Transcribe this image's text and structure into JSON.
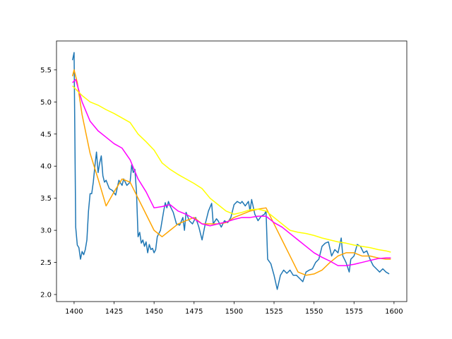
{
  "chart_data": {
    "type": "line",
    "xlim": [
      1389,
      1608
    ],
    "ylim": [
      1.89,
      5.95
    ],
    "xticks": [
      1400,
      1425,
      1450,
      1475,
      1500,
      1525,
      1550,
      1575,
      1600
    ],
    "yticks": [
      {
        "value": 2.0,
        "label": "2.0"
      },
      {
        "value": 2.5,
        "label": "2.5"
      },
      {
        "value": 3.0,
        "label": "3.0"
      },
      {
        "value": 3.5,
        "label": "3.5"
      },
      {
        "value": 4.0,
        "label": "4.0"
      },
      {
        "value": 4.5,
        "label": "4.5"
      },
      {
        "value": 5.0,
        "label": "5.0"
      },
      {
        "value": 5.5,
        "label": "5.5"
      }
    ],
    "series": [
      {
        "color": "#1f77b4",
        "x": [
          1399,
          1400,
          1401,
          1402,
          1403,
          1404,
          1405,
          1406,
          1407,
          1408,
          1409,
          1410,
          1411,
          1412,
          1413,
          1414,
          1415,
          1416,
          1417,
          1418,
          1419,
          1420,
          1422,
          1424,
          1426,
          1428,
          1430,
          1431,
          1433,
          1435,
          1436,
          1437,
          1438,
          1439,
          1440,
          1441,
          1442,
          1443,
          1444,
          1445,
          1446,
          1447,
          1448,
          1449,
          1450,
          1451,
          1452,
          1454,
          1456,
          1457,
          1458,
          1459,
          1460,
          1462,
          1464,
          1466,
          1468,
          1469,
          1470,
          1472,
          1474,
          1476,
          1478,
          1480,
          1482,
          1484,
          1486,
          1487,
          1489,
          1490,
          1492,
          1494,
          1496,
          1498,
          1500,
          1502,
          1504,
          1505,
          1507,
          1509,
          1510,
          1511,
          1513,
          1515,
          1517,
          1519,
          1520,
          1521,
          1523,
          1525,
          1527,
          1529,
          1531,
          1533,
          1535,
          1537,
          1539,
          1541,
          1543,
          1545,
          1547,
          1549,
          1551,
          1553,
          1555,
          1557,
          1559,
          1561,
          1563,
          1565,
          1567,
          1568,
          1570,
          1572,
          1573,
          1575,
          1577,
          1579,
          1581,
          1583,
          1585,
          1587,
          1589,
          1591,
          1593,
          1595,
          1597
        ],
        "values": [
          5.65,
          5.77,
          3.05,
          2.77,
          2.73,
          2.55,
          2.67,
          2.62,
          2.7,
          2.85,
          3.3,
          3.57,
          3.57,
          3.75,
          4.0,
          4.22,
          3.9,
          4.05,
          4.16,
          3.85,
          3.75,
          3.78,
          3.65,
          3.62,
          3.55,
          3.78,
          3.7,
          3.8,
          3.7,
          3.75,
          4.02,
          3.9,
          3.95,
          3.6,
          2.9,
          2.97,
          2.8,
          2.85,
          2.75,
          2.82,
          2.65,
          2.78,
          2.7,
          2.72,
          2.65,
          2.7,
          2.9,
          3.0,
          3.3,
          3.43,
          3.35,
          3.45,
          3.38,
          3.28,
          3.1,
          3.08,
          3.2,
          3.0,
          3.28,
          3.15,
          3.1,
          3.2,
          3.05,
          2.85,
          3.1,
          3.3,
          3.42,
          3.1,
          3.18,
          3.15,
          3.05,
          3.15,
          3.12,
          3.2,
          3.4,
          3.45,
          3.42,
          3.45,
          3.38,
          3.45,
          3.3,
          3.48,
          3.25,
          3.15,
          3.22,
          3.25,
          3.3,
          2.55,
          2.48,
          2.3,
          2.08,
          2.3,
          2.38,
          2.33,
          2.38,
          2.3,
          2.3,
          2.25,
          2.2,
          2.35,
          2.38,
          2.4,
          2.5,
          2.55,
          2.75,
          2.8,
          2.82,
          2.6,
          2.7,
          2.65,
          2.88,
          2.6,
          2.5,
          2.35,
          2.55,
          2.6,
          2.78,
          2.75,
          2.65,
          2.68,
          2.55,
          2.45,
          2.4,
          2.35,
          2.4,
          2.35,
          2.32
        ]
      },
      {
        "color": "#ffa500",
        "x": [
          1399,
          1400,
          1402,
          1405,
          1410,
          1415,
          1420,
          1425,
          1430,
          1435,
          1440,
          1445,
          1450,
          1455,
          1460,
          1465,
          1470,
          1475,
          1480,
          1485,
          1490,
          1495,
          1500,
          1505,
          1510,
          1515,
          1520,
          1525,
          1530,
          1535,
          1540,
          1545,
          1550,
          1555,
          1560,
          1565,
          1570,
          1575,
          1580,
          1585,
          1590,
          1595,
          1598
        ],
        "values": [
          5.4,
          5.5,
          5.3,
          4.8,
          4.2,
          3.8,
          3.38,
          3.6,
          3.8,
          3.75,
          3.5,
          3.25,
          3.0,
          2.9,
          3.0,
          3.1,
          3.15,
          3.2,
          3.1,
          3.1,
          3.1,
          3.12,
          3.2,
          3.25,
          3.3,
          3.33,
          3.35,
          3.1,
          2.85,
          2.6,
          2.35,
          2.3,
          2.32,
          2.38,
          2.5,
          2.6,
          2.65,
          2.65,
          2.6,
          2.6,
          2.57,
          2.55,
          2.55
        ]
      },
      {
        "color": "#ff00ff",
        "x": [
          1399,
          1401,
          1405,
          1410,
          1415,
          1420,
          1425,
          1430,
          1435,
          1440,
          1445,
          1450,
          1455,
          1460,
          1465,
          1470,
          1475,
          1480,
          1485,
          1490,
          1495,
          1500,
          1505,
          1510,
          1515,
          1520,
          1525,
          1530,
          1535,
          1540,
          1545,
          1550,
          1555,
          1560,
          1565,
          1570,
          1575,
          1580,
          1585,
          1590,
          1595,
          1598
        ],
        "values": [
          5.3,
          5.35,
          5.0,
          4.7,
          4.55,
          4.45,
          4.35,
          4.28,
          4.1,
          3.8,
          3.6,
          3.35,
          3.37,
          3.4,
          3.3,
          3.25,
          3.18,
          3.1,
          3.07,
          3.1,
          3.13,
          3.17,
          3.2,
          3.2,
          3.22,
          3.22,
          3.12,
          3.05,
          2.95,
          2.85,
          2.75,
          2.65,
          2.58,
          2.52,
          2.45,
          2.45,
          2.47,
          2.5,
          2.53,
          2.56,
          2.57,
          2.57
        ]
      },
      {
        "color": "#ffff00",
        "x": [
          1399,
          1405,
          1410,
          1415,
          1420,
          1425,
          1430,
          1435,
          1440,
          1445,
          1450,
          1455,
          1460,
          1465,
          1470,
          1475,
          1480,
          1485,
          1490,
          1495,
          1500,
          1505,
          1510,
          1515,
          1520,
          1525,
          1530,
          1535,
          1540,
          1545,
          1550,
          1555,
          1560,
          1565,
          1570,
          1575,
          1580,
          1585,
          1590,
          1595,
          1598
        ],
        "values": [
          5.25,
          5.1,
          5.0,
          4.95,
          4.88,
          4.82,
          4.75,
          4.68,
          4.5,
          4.38,
          4.25,
          4.05,
          3.95,
          3.87,
          3.8,
          3.73,
          3.65,
          3.5,
          3.4,
          3.3,
          3.25,
          3.28,
          3.32,
          3.33,
          3.3,
          3.2,
          3.1,
          3.0,
          2.97,
          2.95,
          2.92,
          2.88,
          2.85,
          2.82,
          2.8,
          2.77,
          2.75,
          2.73,
          2.7,
          2.68,
          2.66
        ]
      }
    ]
  }
}
